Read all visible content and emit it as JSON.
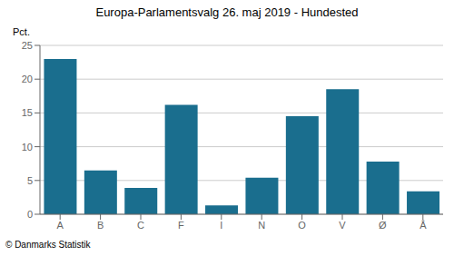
{
  "chart_data": {
    "type": "bar",
    "title": "Europa-Parlamentsvalg 26. maj 2019 - Hundested",
    "categories": [
      "A",
      "B",
      "C",
      "F",
      "I",
      "N",
      "O",
      "V",
      "Ø",
      "Å"
    ],
    "values": [
      23.0,
      6.5,
      3.9,
      16.2,
      1.3,
      5.4,
      14.5,
      18.5,
      7.8,
      3.4
    ],
    "color": "#1a6e8e",
    "ylabel": "Pct.",
    "ylim": [
      0,
      25
    ],
    "yticks": [
      0,
      5,
      10,
      15,
      20,
      25
    ],
    "grid": true,
    "footer": "© Danmarks Statistik"
  }
}
